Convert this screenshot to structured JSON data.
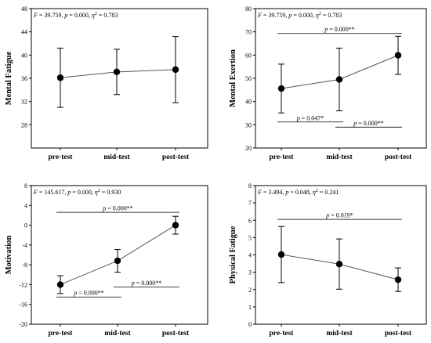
{
  "chart_data": [
    {
      "type": "line",
      "ylabel": "Mental Fatigue",
      "categories": [
        "pre-test",
        "mid-test",
        "post-test"
      ],
      "ylim": [
        24,
        48
      ],
      "yticks": [
        28,
        32,
        36,
        40,
        44,
        48
      ],
      "series": [
        {
          "values": [
            36.1,
            37.1,
            37.5
          ],
          "errors": [
            5.1,
            3.9,
            5.7
          ]
        }
      ],
      "stats": {
        "F": "39.759",
        "p": "0.000",
        "eta2": "0.783"
      },
      "comparisons": []
    },
    {
      "type": "line",
      "ylabel": "Mental Exertion",
      "categories": [
        "pre-test",
        "mid-test",
        "post-test"
      ],
      "ylim": [
        20,
        80
      ],
      "yticks": [
        20,
        30,
        40,
        50,
        60,
        70,
        80
      ],
      "series": [
        {
          "values": [
            45.6,
            49.5,
            59.9
          ],
          "errors": [
            10.5,
            13.5,
            8.2
          ]
        }
      ],
      "stats": {
        "F": "39.759",
        "p": "0.000",
        "eta2": "0.783"
      },
      "comparisons": [
        {
          "from": 0,
          "to": 2,
          "y": 69.3,
          "p": "0.000**"
        },
        {
          "from": 0,
          "to": 1,
          "y": 31.2,
          "p": "0.047*"
        },
        {
          "from": 1,
          "to": 2,
          "y": 29.0,
          "p": "0.000**"
        }
      ]
    },
    {
      "type": "line",
      "ylabel": "Motivation",
      "categories": [
        "pre-test",
        "mid-test",
        "post-test"
      ],
      "ylim": [
        -20,
        8
      ],
      "yticks": [
        -20,
        -16,
        -12,
        -8,
        -4,
        0,
        4,
        8
      ],
      "series": [
        {
          "values": [
            -12.0,
            -7.2,
            0.0
          ],
          "errors": [
            1.8,
            2.3,
            1.8
          ]
        }
      ],
      "stats": {
        "F": "145.617",
        "p": "0.000",
        "eta2": "0.930"
      },
      "comparisons": [
        {
          "from": 0,
          "to": 2,
          "y": 2.6,
          "p": "0.000**"
        },
        {
          "from": 0,
          "to": 1,
          "y": -14.5,
          "p": "0.000**"
        },
        {
          "from": 1,
          "to": 2,
          "y": -12.5,
          "p": "0.000**"
        }
      ]
    },
    {
      "type": "line",
      "ylabel": "Physical Fatigue",
      "categories": [
        "pre-test",
        "mid-test",
        "post-test"
      ],
      "ylim": [
        0,
        8
      ],
      "yticks": [
        0,
        1,
        2,
        3,
        4,
        5,
        6,
        7,
        8
      ],
      "series": [
        {
          "values": [
            4.02,
            3.47,
            2.57
          ],
          "errors": [
            1.62,
            1.45,
            0.68
          ]
        }
      ],
      "stats": {
        "F": "3.494",
        "p": "0.048",
        "eta2": "0.241"
      },
      "comparisons": [
        {
          "from": 0,
          "to": 2,
          "y": 6.05,
          "p": "0.019*"
        }
      ]
    }
  ]
}
